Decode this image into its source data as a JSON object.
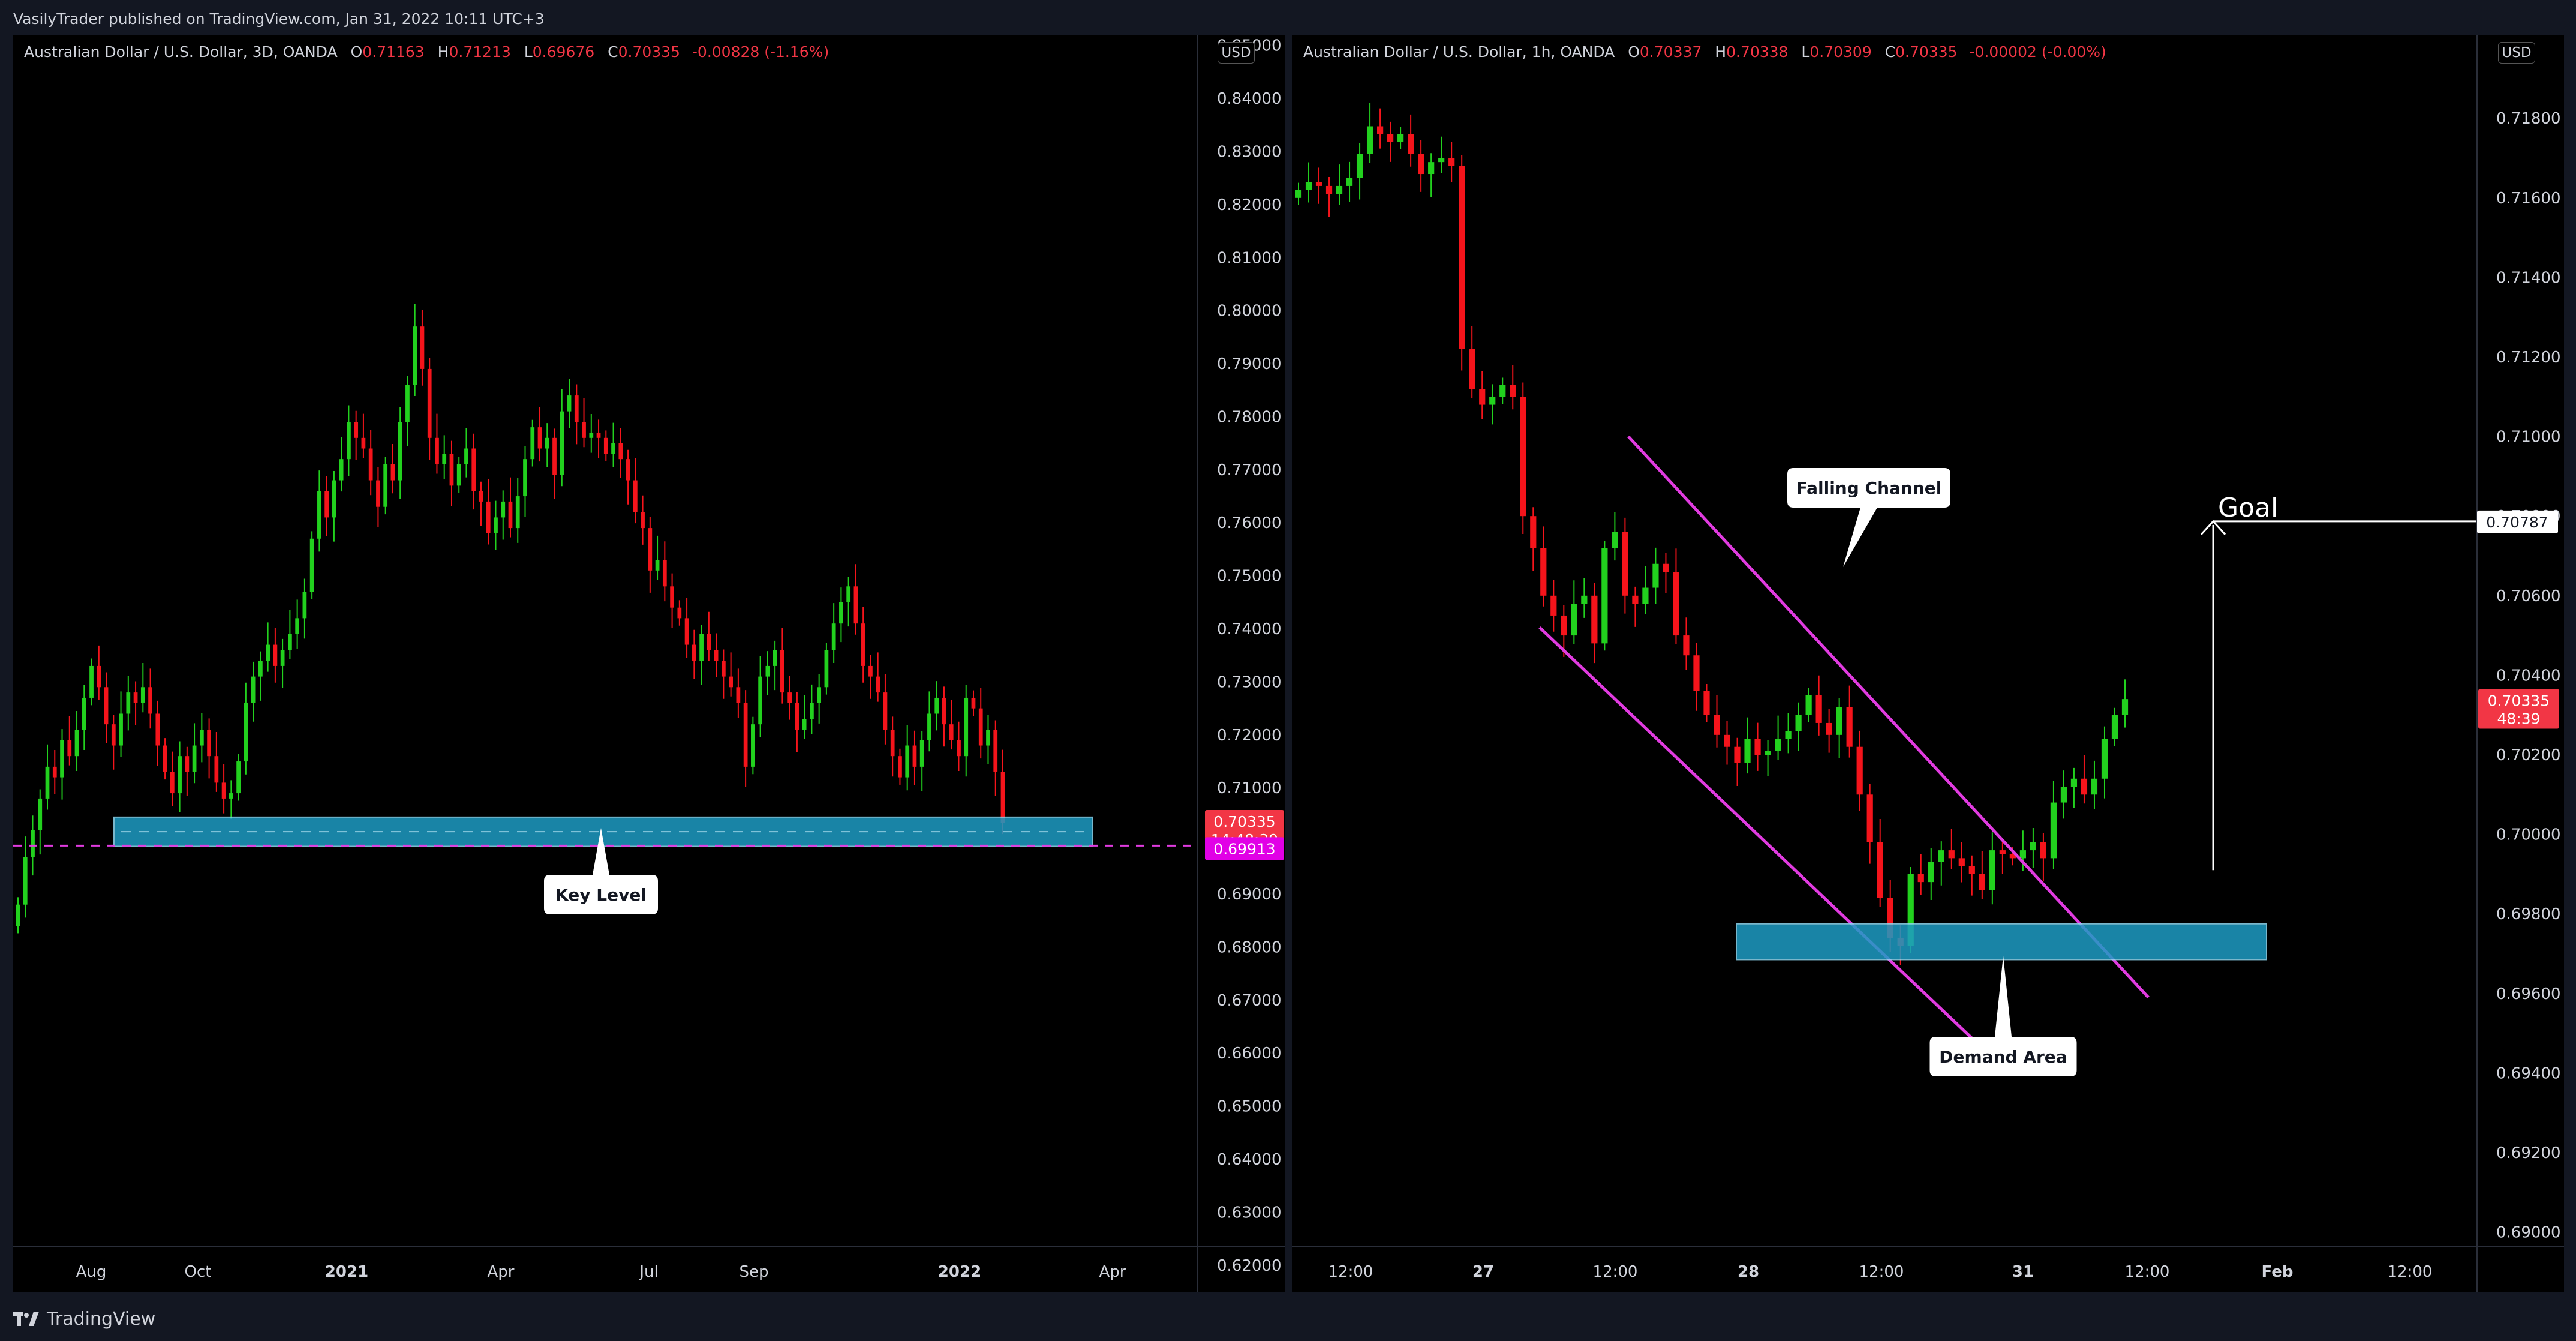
{
  "header": {
    "text": "VasilyTrader published on TradingView.com, Jan 31, 2022 10:11 UTC+3"
  },
  "footer": {
    "brand": "TradingView"
  },
  "colors": {
    "up": "#22d11e",
    "down": "#f5141b",
    "zone": "#1e9cc4",
    "channel": "#e13be0",
    "bg": "#000000"
  },
  "left": {
    "legend": {
      "symbol": "Australian Dollar / U.S. Dollar, 3D, OANDA",
      "O": "0.71163",
      "H": "0.71213",
      "L": "0.69676",
      "C": "0.70335",
      "change": "-0.00828 (-1.16%)"
    },
    "currency": "USD",
    "price_label": "0.70335",
    "countdown": "14:48:39",
    "level_label": "0.69913",
    "callout": "Key Level"
  },
  "right": {
    "legend": {
      "symbol": "Australian Dollar / U.S. Dollar, 1h, OANDA",
      "O": "0.70337",
      "H": "0.70338",
      "L": "0.70309",
      "C": "0.70335",
      "change": "-0.00002 (-0.00%)"
    },
    "currency": "USD",
    "price_label": "0.70335",
    "countdown": "48:39",
    "goal_price": "0.70787",
    "goal_label": "Goal",
    "callout_channel": "Falling Channel",
    "callout_demand": "Demand Area"
  },
  "chart_data": [
    {
      "type": "candlestick",
      "title": "Australian Dollar / U.S. Dollar, 3D, OANDA",
      "y_ticks": [
        "0.85000",
        "0.84000",
        "0.83000",
        "0.82000",
        "0.81000",
        "0.80000",
        "0.79000",
        "0.78000",
        "0.77000",
        "0.76000",
        "0.75000",
        "0.74000",
        "0.73000",
        "0.72000",
        "0.71000",
        "0.70000",
        "0.69000",
        "0.68000",
        "0.67000",
        "0.66000",
        "0.65000",
        "0.64000",
        "0.63000",
        "0.62000"
      ],
      "ylim": [
        0.615,
        0.852
      ],
      "x_ticks": [
        "Aug",
        "Oct",
        "2021",
        "Apr",
        "Jul",
        "Sep",
        "2022",
        "Apr"
      ],
      "closes": [
        0.688,
        0.697,
        0.702,
        0.708,
        0.714,
        0.712,
        0.719,
        0.716,
        0.721,
        0.727,
        0.733,
        0.729,
        0.722,
        0.718,
        0.724,
        0.728,
        0.726,
        0.729,
        0.724,
        0.718,
        0.713,
        0.709,
        0.716,
        0.713,
        0.718,
        0.721,
        0.716,
        0.711,
        0.708,
        0.709,
        0.715,
        0.726,
        0.731,
        0.734,
        0.737,
        0.733,
        0.736,
        0.739,
        0.742,
        0.747,
        0.757,
        0.766,
        0.761,
        0.768,
        0.772,
        0.779,
        0.776,
        0.774,
        0.768,
        0.763,
        0.771,
        0.768,
        0.779,
        0.786,
        0.797,
        0.789,
        0.776,
        0.771,
        0.773,
        0.767,
        0.771,
        0.774,
        0.766,
        0.764,
        0.758,
        0.761,
        0.764,
        0.759,
        0.765,
        0.772,
        0.778,
        0.774,
        0.776,
        0.769,
        0.781,
        0.784,
        0.779,
        0.776,
        0.777,
        0.776,
        0.773,
        0.775,
        0.772,
        0.768,
        0.762,
        0.759,
        0.751,
        0.753,
        0.748,
        0.744,
        0.742,
        0.737,
        0.734,
        0.739,
        0.736,
        0.734,
        0.731,
        0.729,
        0.726,
        0.714,
        0.722,
        0.731,
        0.733,
        0.736,
        0.728,
        0.726,
        0.721,
        0.723,
        0.726,
        0.729,
        0.736,
        0.741,
        0.745,
        0.748,
        0.741,
        0.733,
        0.731,
        0.728,
        0.721,
        0.716,
        0.712,
        0.718,
        0.714,
        0.719,
        0.724,
        0.727,
        0.722,
        0.719,
        0.716,
        0.727,
        0.725,
        0.718,
        0.721,
        0.713,
        0.7034
      ]
    },
    {
      "type": "candlestick",
      "title": "Australian Dollar / U.S. Dollar, 1h, OANDA",
      "y_ticks": [
        "0.71800",
        "0.71600",
        "0.71400",
        "0.71200",
        "0.71000",
        "0.70800",
        "0.70600",
        "0.70400",
        "0.70200",
        "0.70000",
        "0.69800",
        "0.69600",
        "0.69400",
        "0.69200",
        "0.69000"
      ],
      "ylim": [
        0.6885,
        0.7201
      ],
      "x_ticks": [
        "12:00",
        "27",
        "12:00",
        "28",
        "12:00",
        "31",
        "12:00",
        "Feb",
        "12:00"
      ],
      "closes": [
        0.7162,
        0.7164,
        0.7163,
        0.7161,
        0.7163,
        0.7165,
        0.7171,
        0.7178,
        0.7176,
        0.7174,
        0.7176,
        0.7171,
        0.7166,
        0.7169,
        0.717,
        0.7168,
        0.7122,
        0.7112,
        0.7108,
        0.711,
        0.7113,
        0.711,
        0.708,
        0.7072,
        0.706,
        0.7055,
        0.705,
        0.7058,
        0.706,
        0.7048,
        0.7072,
        0.7076,
        0.706,
        0.7058,
        0.7062,
        0.7068,
        0.7066,
        0.705,
        0.7045,
        0.7036,
        0.703,
        0.7025,
        0.7022,
        0.7018,
        0.7024,
        0.702,
        0.7021,
        0.7024,
        0.7026,
        0.703,
        0.7035,
        0.7028,
        0.7025,
        0.7032,
        0.7022,
        0.701,
        0.6998,
        0.6984,
        0.6974,
        0.6972,
        0.699,
        0.6988,
        0.6993,
        0.6996,
        0.6994,
        0.6992,
        0.699,
        0.6986,
        0.6996,
        0.6995,
        0.6994,
        0.6996,
        0.6998,
        0.6994,
        0.7008,
        0.7012,
        0.7014,
        0.701,
        0.7014,
        0.7024,
        0.703,
        0.7034
      ]
    }
  ]
}
